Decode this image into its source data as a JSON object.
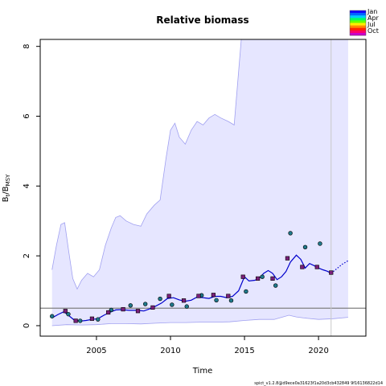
{
  "chart_data": {
    "type": "line",
    "title": "Relative biomass",
    "xlabel": "Time",
    "ylabel": "B_t / B_MSY",
    "xlim": [
      2001.2,
      2023.2
    ],
    "ylim": [
      -0.3,
      8.2
    ],
    "xticks": [
      2005,
      2010,
      2015,
      2020
    ],
    "yticks": [
      0,
      2,
      4,
      6,
      8
    ],
    "reference_line_y": 0.5,
    "data_end_year": 2020.85,
    "ci_upper": {
      "x": [
        2002.0,
        2002.3,
        2002.6,
        2002.85,
        2003.1,
        2003.4,
        2003.7,
        2004.0,
        2004.4,
        2004.8,
        2005.2,
        2005.6,
        2006.0,
        2006.3,
        2006.6,
        2007.0,
        2007.5,
        2008.0,
        2008.4,
        2008.9,
        2009.3,
        2009.7,
        2010.0,
        2010.3,
        2010.6,
        2011.0,
        2011.4,
        2011.8,
        2012.2,
        2012.6,
        2013.0,
        2013.4,
        2013.9,
        2014.3,
        2014.8,
        2015.2,
        2016.0,
        2018.0,
        2020.0,
        2022.0
      ],
      "y": [
        1.6,
        2.3,
        2.9,
        2.95,
        2.2,
        1.35,
        1.05,
        1.3,
        1.5,
        1.4,
        1.6,
        2.3,
        2.8,
        3.1,
        3.15,
        3.0,
        2.9,
        2.85,
        3.2,
        3.45,
        3.6,
        4.8,
        5.6,
        5.8,
        5.4,
        5.2,
        5.6,
        5.85,
        5.75,
        5.95,
        6.05,
        5.95,
        5.85,
        5.75,
        8.3,
        8.3,
        8.3,
        8.3,
        8.3,
        8.3
      ]
    },
    "ci_lower": {
      "x": [
        2002.0,
        2003.0,
        2004.0,
        2005.0,
        2006.0,
        2007.0,
        2008.0,
        2009.0,
        2010.0,
        2011.0,
        2012.0,
        2013.0,
        2014.0,
        2015.0,
        2016.0,
        2017.0,
        2018.0,
        2018.5,
        2019.0,
        2020.0,
        2021.0,
        2022.0
      ],
      "y": [
        0.0,
        0.03,
        0.02,
        0.03,
        0.06,
        0.06,
        0.05,
        0.07,
        0.09,
        0.09,
        0.1,
        0.1,
        0.11,
        0.15,
        0.18,
        0.18,
        0.3,
        0.25,
        0.22,
        0.18,
        0.2,
        0.24
      ]
    },
    "series": [
      {
        "name": "",
        "style": "solid",
        "x": [
          2002.0,
          2002.4,
          2002.8,
          2003.1,
          2003.5,
          2003.9,
          2004.3,
          2004.7,
          2005.1,
          2005.5,
          2005.9,
          2006.3,
          2006.7,
          2007.2,
          2007.7,
          2008.2,
          2008.6,
          2009.0,
          2009.4,
          2009.8,
          2010.2,
          2010.6,
          2011.0,
          2011.4,
          2011.8,
          2012.2,
          2012.6,
          2013.0,
          2013.4,
          2013.8,
          2014.2,
          2014.6,
          2015.0,
          2015.3,
          2015.7,
          2016.0,
          2016.3,
          2016.6,
          2016.9,
          2017.2,
          2017.5,
          2017.8,
          2018.1,
          2018.5,
          2018.8,
          2019.1,
          2019.4,
          2019.7,
          2020.0,
          2020.3,
          2020.6,
          2020.85
        ],
        "y": [
          0.22,
          0.32,
          0.4,
          0.3,
          0.16,
          0.13,
          0.15,
          0.18,
          0.2,
          0.3,
          0.38,
          0.45,
          0.46,
          0.44,
          0.44,
          0.42,
          0.48,
          0.56,
          0.65,
          0.78,
          0.8,
          0.74,
          0.7,
          0.73,
          0.82,
          0.8,
          0.78,
          0.84,
          0.84,
          0.8,
          0.84,
          1.0,
          1.4,
          1.28,
          1.3,
          1.36,
          1.5,
          1.58,
          1.5,
          1.32,
          1.4,
          1.55,
          1.82,
          2.02,
          1.9,
          1.65,
          1.78,
          1.72,
          1.65,
          1.6,
          1.56,
          1.5
        ]
      },
      {
        "name": "",
        "style": "dotted",
        "x": [
          2020.85,
          2021.2,
          2021.6,
          2022.0
        ],
        "y": [
          1.5,
          1.62,
          1.76,
          1.86
        ]
      }
    ],
    "observations_circles": {
      "x": [
        2002.0,
        2003.1,
        2003.9,
        2005.1,
        2006.0,
        2007.3,
        2008.3,
        2009.3,
        2010.1,
        2011.1,
        2012.1,
        2013.1,
        2014.1,
        2015.1,
        2016.2,
        2017.1,
        2018.1,
        2019.1,
        2020.1
      ],
      "y": [
        0.27,
        0.33,
        0.14,
        0.18,
        0.45,
        0.58,
        0.62,
        0.77,
        0.6,
        0.55,
        0.87,
        0.73,
        0.72,
        0.98,
        1.4,
        1.15,
        2.65,
        2.25,
        2.35
      ]
    },
    "observations_squares": {
      "x": [
        2002.9,
        2003.6,
        2004.7,
        2005.8,
        2006.8,
        2007.8,
        2008.8,
        2009.9,
        2010.9,
        2011.9,
        2012.9,
        2013.9,
        2014.9,
        2015.9,
        2016.9,
        2017.9,
        2018.9,
        2019.9,
        2020.85
      ],
      "y": [
        0.42,
        0.14,
        0.2,
        0.38,
        0.47,
        0.42,
        0.52,
        0.85,
        0.72,
        0.85,
        0.88,
        0.85,
        1.4,
        1.35,
        1.35,
        1.93,
        1.68,
        1.68,
        1.52
      ]
    },
    "legend": {
      "placement": "top-right",
      "labels": [
        "Jan",
        "Apr",
        "Jul",
        "Oct"
      ],
      "colors": [
        "#1100ff",
        "#0066ff",
        "#00ccff",
        "#00ff66",
        "#66ff00",
        "#ffee00",
        "#ff8800",
        "#ff2200",
        "#ff0066",
        "#cc00cc"
      ]
    },
    "grid": false
  },
  "footer": "spict_v1.2.8@d9ece0a31623f1a20d3cb432849 9f16136822d14",
  "colors": {
    "ci_fill": "#e6e6ff",
    "ci_stroke": "#a0a0f0",
    "line": "#0000cc",
    "reference": "#808080",
    "marker_circle": "#1f7a8c",
    "marker_square": "#7a1f7a"
  }
}
